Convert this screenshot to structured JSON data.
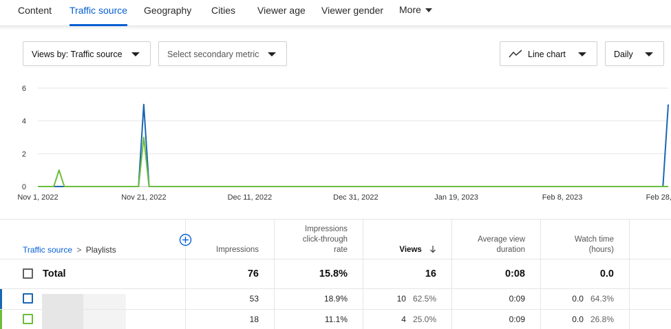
{
  "tabs": [
    {
      "label": "Content",
      "active": false
    },
    {
      "label": "Traffic source",
      "active": true
    },
    {
      "label": "Geography",
      "active": false
    },
    {
      "label": "Cities",
      "active": false
    },
    {
      "label": "Viewer age",
      "active": false
    },
    {
      "label": "Viewer gender",
      "active": false
    },
    {
      "label": "More",
      "active": false
    }
  ],
  "controls": {
    "views_by": "Views by: Traffic source",
    "secondary_metric": "Select secondary metric",
    "chart_type": "Line chart",
    "interval": "Daily"
  },
  "chart_data": {
    "type": "line",
    "y_ticks": [
      "6",
      "4",
      "2",
      "0"
    ],
    "ylim": [
      0,
      6
    ],
    "x_tick_labels": [
      "Nov 1, 2022",
      "Nov 21, 2022",
      "Dec 11, 2022",
      "Dec 31, 2022",
      "Jan 19, 2023",
      "Feb 8, 2023",
      "Feb 28, 2023"
    ],
    "x_tick_dates": [
      "2022-11-01",
      "2022-11-21",
      "2022-12-11",
      "2022-12-31",
      "2023-01-19",
      "2023-02-08",
      "2023-02-28"
    ],
    "grid": true,
    "series": [
      {
        "color": "#1a66b3",
        "points": [
          {
            "x": "2022-11-21",
            "y": 5
          },
          {
            "x": "2023-02-28",
            "y": 5
          }
        ]
      },
      {
        "color": "#6cbd3b",
        "points": [
          {
            "x": "2022-11-05",
            "y": 1
          },
          {
            "x": "2022-11-21",
            "y": 3
          }
        ]
      }
    ]
  },
  "table": {
    "breadcrumb_link": "Traffic source",
    "breadcrumb_sep": ">",
    "breadcrumb_current": "Playlists",
    "headers": {
      "impressions": "Impressions",
      "ctr_line1": "Impressions",
      "ctr_line2": "click-through",
      "ctr_line3": "rate",
      "views": "Views",
      "avd_line1": "Average view",
      "avd_line2": "duration",
      "watch_line1": "Watch time",
      "watch_line2": "(hours)"
    },
    "total": {
      "label": "Total",
      "impressions": "76",
      "ctr": "15.8%",
      "views": "16",
      "avd": "0:08",
      "watch": "0.0"
    },
    "rows": [
      {
        "color": "#1a66b3",
        "impressions": "53",
        "ctr": "18.9%",
        "views": "10",
        "views_pct": "62.5%",
        "avd": "0:09",
        "watch": "0.0",
        "watch_pct": "64.3%"
      },
      {
        "color": "#6cbd3b",
        "impressions": "18",
        "ctr": "11.1%",
        "views": "4",
        "views_pct": "25.0%",
        "avd": "0:09",
        "watch": "0.0",
        "watch_pct": "26.8%"
      }
    ]
  }
}
